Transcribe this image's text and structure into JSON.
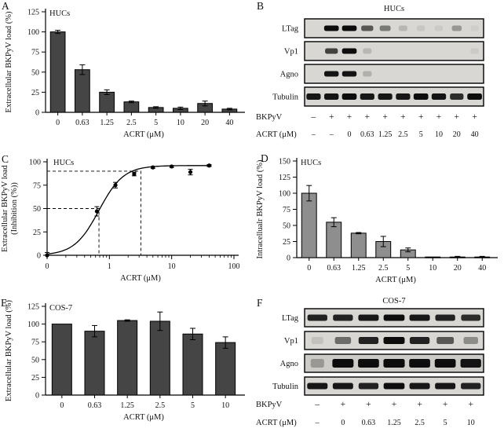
{
  "letters": {
    "A": "A",
    "B": "B",
    "C": "C",
    "D": "D",
    "E": "E",
    "F": "F"
  },
  "chart_data": [
    {
      "panel": "A",
      "type": "bar",
      "title": "HUCs",
      "xlabel": "ACRT (μM)",
      "ylabel": "Extracellular BKPyV load (%)",
      "ylim": [
        0,
        125
      ],
      "yticks": [
        0,
        25,
        50,
        75,
        100,
        125
      ],
      "bar_color": "#454545",
      "categories": [
        "0",
        "0.63",
        "1.25",
        "2.5",
        "5",
        "10",
        "20",
        "40"
      ],
      "values": [
        100,
        53,
        25,
        13,
        6,
        5,
        11,
        4
      ],
      "errors": [
        2,
        6,
        3,
        1,
        1,
        1.5,
        3,
        1
      ]
    },
    {
      "panel": "C",
      "type": "line",
      "title": "HUCs",
      "xlabel": "ACRT (μM)",
      "ylabel": "Extracellular BKPyV load",
      "ylabel2": "(Inhibition (%))",
      "ylim": [
        0,
        100
      ],
      "yticks": [
        0,
        25,
        50,
        75,
        100
      ],
      "xtick_labels": [
        "0",
        "1",
        "10",
        "100"
      ],
      "x": [
        0,
        0.63,
        1.25,
        2.5,
        5,
        10,
        20,
        40
      ],
      "y": [
        0,
        47,
        75,
        87,
        94,
        95,
        89,
        96
      ],
      "errors": [
        3,
        5,
        3,
        2,
        1,
        1,
        3,
        1
      ],
      "curve": {
        "top": 96,
        "ec50": 0.68,
        "hill": 2.2
      },
      "reference_lines": [
        {
          "y": 50,
          "x": 0.68
        },
        {
          "y": 90,
          "x": 3.2
        }
      ]
    },
    {
      "panel": "D",
      "type": "bar",
      "title": "HUCs",
      "xlabel": "ACRT (μM)",
      "ylabel": "Intracellualr BKPyV load (%)",
      "ylim": [
        0,
        150
      ],
      "yticks": [
        0,
        25,
        50,
        75,
        100,
        125,
        150
      ],
      "bar_color": "#8e8e8e",
      "categories": [
        "0",
        "0.63",
        "1.25",
        "2.5",
        "5",
        "10",
        "20",
        "40"
      ],
      "values": [
        100,
        55,
        38,
        25,
        12,
        1,
        1,
        1
      ],
      "errors": [
        12,
        7,
        1,
        8,
        3,
        0,
        1,
        1
      ]
    },
    {
      "panel": "E",
      "type": "bar",
      "title": "COS-7",
      "xlabel": "ACRT (μM)",
      "ylabel": "Extracellular BKPyV load (%)",
      "ylim": [
        0,
        125
      ],
      "yticks": [
        0,
        25,
        50,
        75,
        100,
        125
      ],
      "bar_color": "#454545",
      "categories": [
        "0",
        "0.63",
        "1.25",
        "2.5",
        "5",
        "10"
      ],
      "values": [
        100,
        90,
        105,
        104,
        86,
        74
      ],
      "errors": [
        0,
        8,
        1,
        13,
        8,
        8
      ]
    }
  ],
  "blots": [
    {
      "panel": "B",
      "title": "HUCs",
      "rows": [
        {
          "label": "LTag",
          "bands": [
            0,
            0.95,
            0.95,
            0.6,
            0.45,
            0.15,
            0.08,
            0.06,
            0.3,
            0.05
          ]
        },
        {
          "label": "Vp1",
          "bands": [
            0,
            0.7,
            0.95,
            0.15,
            0,
            0,
            0,
            0,
            0,
            0.06
          ]
        },
        {
          "label": "Agno",
          "bands": [
            0,
            0.92,
            0.92,
            0.18,
            0,
            0,
            0,
            0,
            0,
            0
          ]
        },
        {
          "label": "Tubulin",
          "h": 8,
          "bands": [
            0.9,
            0.92,
            0.95,
            0.9,
            0.9,
            0.9,
            0.95,
            0.92,
            0.8,
            0.95
          ]
        }
      ],
      "lane_rows": [
        {
          "label": "BKPyV",
          "values": [
            "–",
            "+",
            "+",
            "+",
            "+",
            "+",
            "+",
            "+",
            "+",
            "+"
          ]
        },
        {
          "label": "ACRT (μM)",
          "values": [
            "–",
            "–",
            "0",
            "0.63",
            "1.25",
            "2.5",
            "5",
            "10",
            "20",
            "40"
          ]
        }
      ]
    },
    {
      "panel": "F",
      "title": "COS-7",
      "rows": [
        {
          "label": "LTag",
          "h": 8,
          "bands": [
            0.85,
            0.85,
            0.9,
            0.95,
            0.9,
            0.85,
            0.8
          ]
        },
        {
          "label": "Vp1",
          "h": 9,
          "bands": [
            0.1,
            0.5,
            0.85,
            0.97,
            0.85,
            0.6,
            0.35
          ]
        },
        {
          "label": "Agno",
          "h": 11,
          "bg": "#cccbc7",
          "bands": [
            0.25,
            0.97,
            0.95,
            0.98,
            0.95,
            0.95,
            0.92
          ]
        },
        {
          "label": "Tubulin",
          "h": 8,
          "bands": [
            0.9,
            0.9,
            0.85,
            0.95,
            0.9,
            0.9,
            0.85
          ]
        }
      ],
      "lane_rows": [
        {
          "label": "BKPyV",
          "values": [
            "–",
            "+",
            "+",
            "+",
            "+",
            "+",
            "+"
          ]
        },
        {
          "label": "ACRT (μM)",
          "values": [
            "–",
            "0",
            "0.63",
            "1.25",
            "2.5",
            "5",
            "10"
          ]
        }
      ]
    }
  ]
}
